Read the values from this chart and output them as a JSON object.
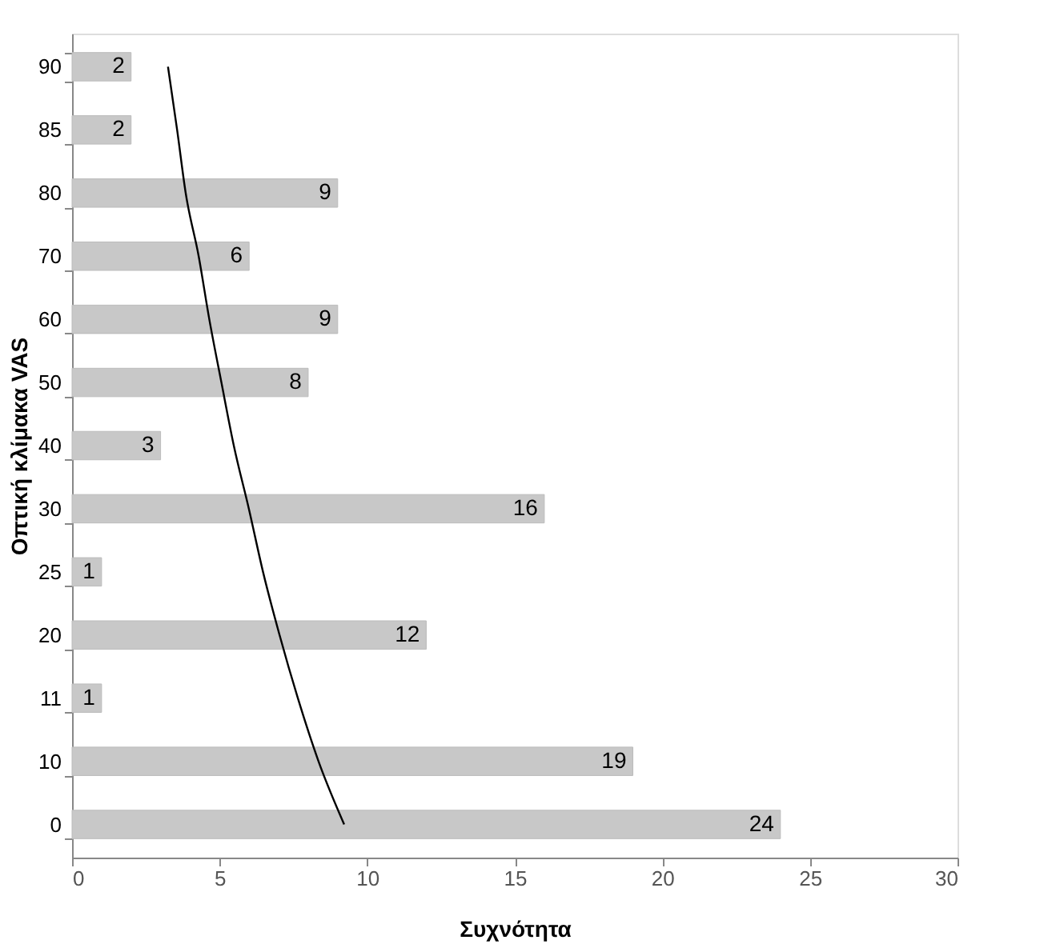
{
  "chart_data": {
    "type": "bar",
    "orientation": "horizontal",
    "xlabel": "Συχνότητα",
    "ylabel": "Οπτική κλίμακα VAS",
    "categories": [
      "90",
      "85",
      "80",
      "70",
      "60",
      "50",
      "40",
      "30",
      "25",
      "20",
      "11",
      "10",
      "0"
    ],
    "series": [
      {
        "color": "#c8c8c8",
        "values": [
          2,
          2,
          9,
          6,
          9,
          8,
          3,
          16,
          1,
          12,
          1,
          19,
          24
        ],
        "value_labels": [
          "2",
          "2",
          "9",
          "6",
          "9",
          "8",
          "3",
          "16",
          "1",
          "12",
          "1",
          "19",
          "24"
        ]
      },
      {
        "type": "line",
        "color": "#000000",
        "values": [
          3.25,
          3.56,
          3.85,
          4.29,
          4.65,
          5.06,
          5.48,
          5.99,
          6.47,
          7.03,
          7.65,
          8.35,
          9.22
        ]
      }
    ],
    "xlim": [
      0,
      30
    ],
    "xticks": [
      0,
      5,
      10,
      15,
      20,
      25,
      30
    ],
    "grid": false
  }
}
